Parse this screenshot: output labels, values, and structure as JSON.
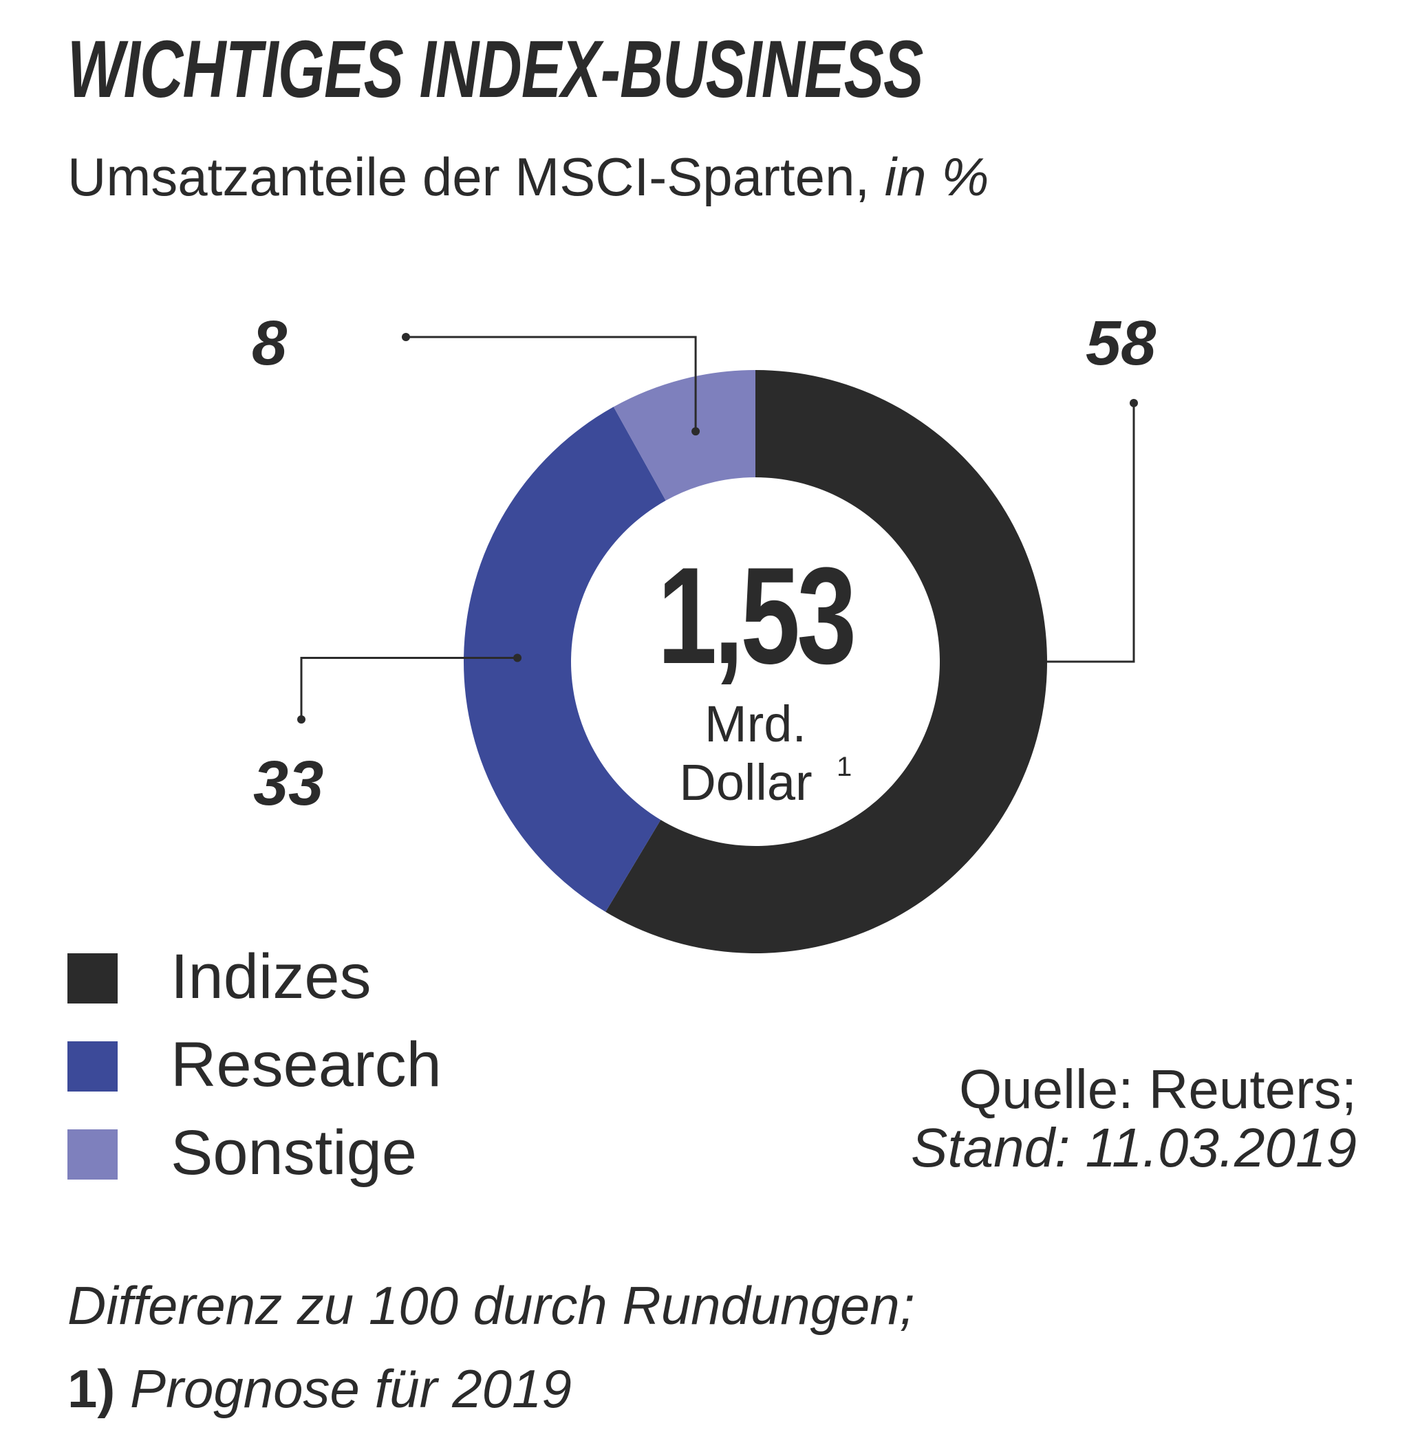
{
  "title": "WICHTIGES INDEX-BUSINESS",
  "subtitle": {
    "text": "Umsatzanteile der MSCI-Sparten,",
    "unit": "in %"
  },
  "chart_data": {
    "type": "pie",
    "style": "donut",
    "center": {
      "value": "1,53",
      "unit_line1": "Mrd.",
      "unit_line2": "Dollar",
      "footnote_mark": "1"
    },
    "segments": [
      {
        "name": "Indizes",
        "value": 58,
        "label": "58",
        "color": "#2b2b2b"
      },
      {
        "name": "Research",
        "value": 33,
        "label": "33",
        "color": "#3c4a99"
      },
      {
        "name": "Sonstige",
        "value": 8,
        "label": "8",
        "color": "#7e80bd"
      }
    ],
    "legend_position": "bottom-left"
  },
  "source": {
    "line1": "Quelle: Reuters;",
    "line2": "Stand: 11.03.2019"
  },
  "footnotes": {
    "line1": "Differenz zu 100 durch Rundungen;",
    "num": "1)",
    "line2": "Prognose für 2019"
  }
}
